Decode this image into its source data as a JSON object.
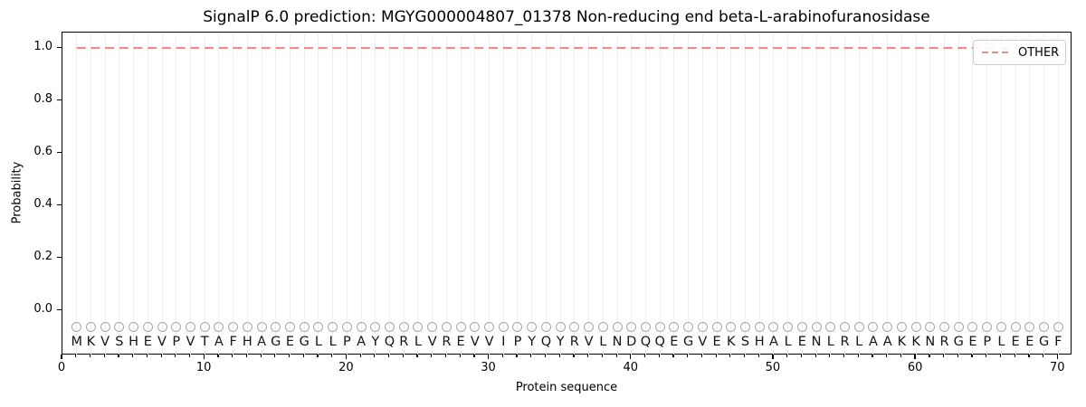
{
  "figure": {
    "title": "SignalP 6.0 prediction: MGYG000004807_01378 Non-reducing end beta-L-arabinofuranosidase"
  },
  "chart_data": {
    "type": "line",
    "title": "SignalP 6.0 prediction: MGYG000004807_01378 Non-reducing end beta-L-arabinofuranosidase",
    "xlabel": "Protein sequence",
    "ylabel": "Probability",
    "xlim": [
      0,
      71
    ],
    "ylim": [
      -0.172,
      1.059
    ],
    "x_ticks": [
      0,
      10,
      20,
      30,
      40,
      50,
      60,
      70
    ],
    "y_ticks": [
      0.0,
      0.2,
      0.4,
      0.6,
      0.8,
      1.0
    ],
    "grid": "light vertical gridline at every residue position",
    "sequence": "MKVSHEVPVTAFHAGEGLLPAYQRLVREVVIPYQYRVLNDQQEGVEKSHALENLRLAAKKNRGEPLEEGF",
    "sequence_length": 70,
    "series": [
      {
        "name": "OTHER",
        "style": "dashed",
        "color": "#f28a88",
        "x_start": 1,
        "x_end": 70,
        "y_constant": 1.0
      }
    ],
    "legend": {
      "position": "upper right",
      "entries": [
        {
          "label": "OTHER",
          "color": "#f28a88",
          "style": "dashed"
        }
      ]
    },
    "marker": {
      "shape": "open-circle",
      "color": "#a6a6a6",
      "y": -0.065
    },
    "letter_row_y": -0.121,
    "colors": {
      "gridline": "#efefef",
      "spine": "#000000",
      "text": "#000000",
      "background": "#ffffff"
    }
  }
}
